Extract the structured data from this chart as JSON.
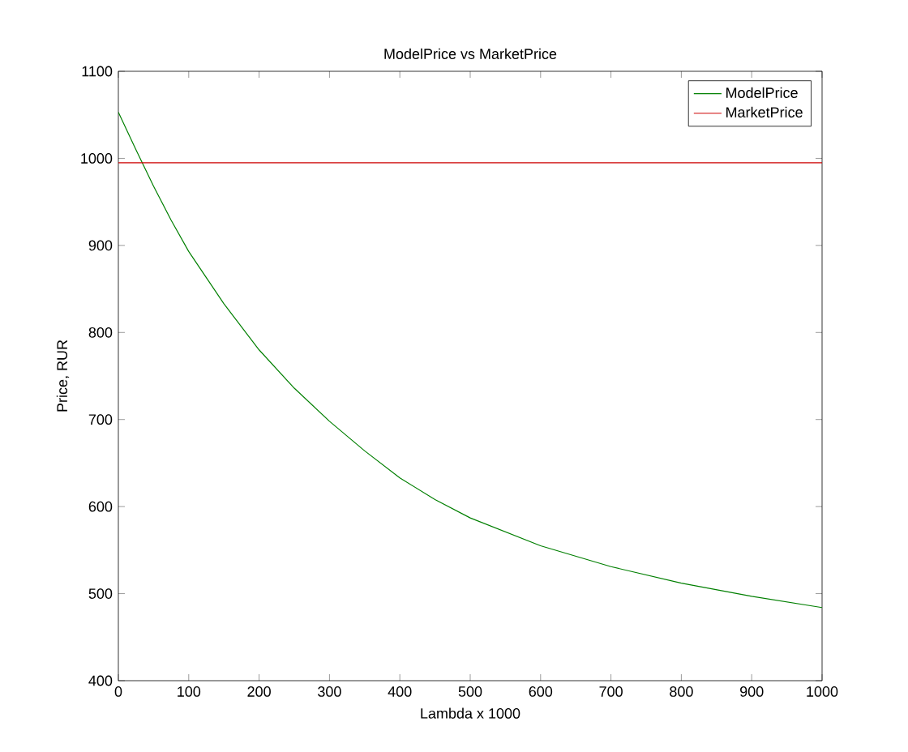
{
  "chart_data": {
    "type": "line",
    "title": "ModelPrice vs MarketPrice",
    "xlabel": "Lambda x 1000",
    "ylabel": "Price, RUR",
    "series": [
      {
        "name": "ModelPrice",
        "color": "#007f00",
        "x": [
          0,
          25,
          50,
          75,
          100,
          150,
          200,
          250,
          300,
          350,
          400,
          450,
          500,
          600,
          700,
          800,
          900,
          1000
        ],
        "values": [
          1053,
          1010,
          968,
          929,
          893,
          833,
          780,
          736,
          698,
          664,
          633,
          608,
          587,
          555,
          531,
          512,
          497,
          484
        ]
      },
      {
        "name": "MarketPrice",
        "color": "#cc0000",
        "x": [
          0,
          1000
        ],
        "values": [
          995,
          995
        ]
      }
    ],
    "xlim": [
      0,
      1000
    ],
    "ylim": [
      400,
      1100
    ],
    "xticks": [
      0,
      100,
      200,
      300,
      400,
      500,
      600,
      700,
      800,
      900,
      1000
    ],
    "yticks": [
      400,
      500,
      600,
      700,
      800,
      900,
      1000,
      1100
    ],
    "legend": "top right",
    "grid": false
  }
}
